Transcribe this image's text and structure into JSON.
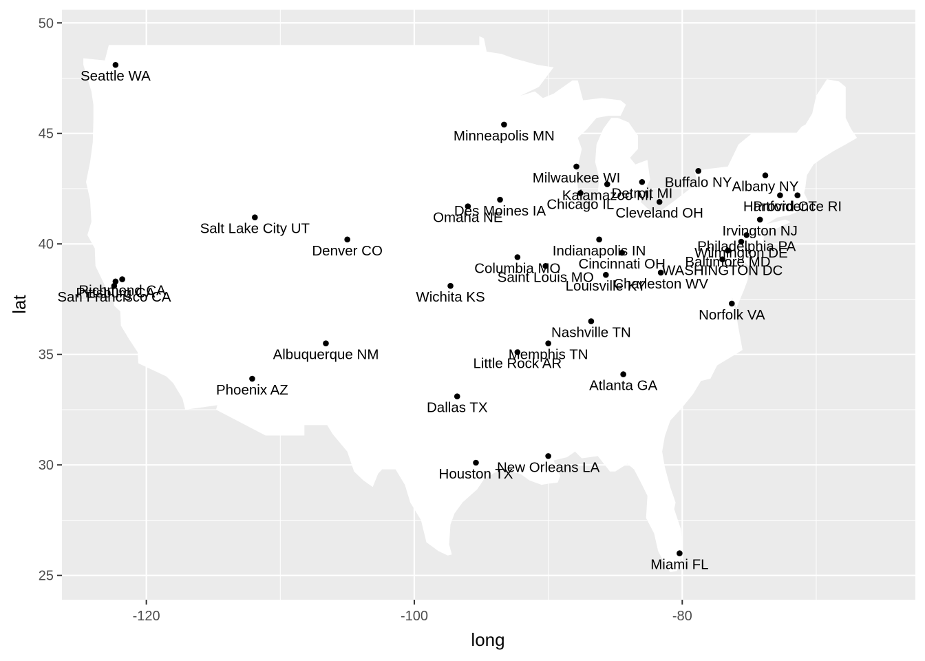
{
  "chart_data": {
    "type": "scatter",
    "title": "",
    "xlabel": "long",
    "ylabel": "lat",
    "xlim": [
      -126.3,
      -62.6
    ],
    "ylim": [
      23.9,
      50.6
    ],
    "x_ticks": [
      -120,
      -100,
      -80
    ],
    "x_tick_labels": [
      "-120",
      "-100",
      "-80"
    ],
    "y_ticks": [
      25,
      30,
      35,
      40,
      45,
      50
    ],
    "y_tick_labels": [
      "25",
      "30",
      "35",
      "40",
      "45",
      "50"
    ],
    "grid": true,
    "legend": "none",
    "colors": {
      "panel_background": "#ebebeb",
      "grid": "#ffffff",
      "land": "#ffffff",
      "points": "#000000",
      "tick_text": "#4d4d4d"
    },
    "basemap": "contiguous-united-states",
    "points": [
      {
        "label": "Seattle WA",
        "long": -122.3,
        "lat": 48.1
      },
      {
        "label": "Minneapolis MN",
        "long": -93.3,
        "lat": 45.4
      },
      {
        "label": "Milwaukee WI",
        "long": -87.9,
        "lat": 43.5
      },
      {
        "label": "Buffalo NY",
        "long": -78.8,
        "lat": 43.3
      },
      {
        "label": "Albany NY",
        "long": -73.8,
        "lat": 43.1
      },
      {
        "label": "Detroit MI",
        "long": -83.0,
        "lat": 42.8
      },
      {
        "label": "Kalamazoo MI",
        "long": -85.6,
        "lat": 42.7
      },
      {
        "label": "Chicago IL",
        "long": -87.6,
        "lat": 42.3
      },
      {
        "label": "Providence RI",
        "long": -71.4,
        "lat": 42.2
      },
      {
        "label": "Hartford CT",
        "long": -72.7,
        "lat": 42.2
      },
      {
        "label": "Des Moines IA",
        "long": -93.6,
        "lat": 42.0
      },
      {
        "label": "Cleveland OH",
        "long": -81.7,
        "lat": 41.9
      },
      {
        "label": "Omaha NE",
        "long": -96.0,
        "lat": 41.7
      },
      {
        "label": "Salt Lake City UT",
        "long": -111.9,
        "lat": 41.2
      },
      {
        "label": "Irvington NJ",
        "long": -74.2,
        "lat": 41.1
      },
      {
        "label": "Philadelphia PA",
        "long": -75.2,
        "lat": 40.4
      },
      {
        "label": "Denver CO",
        "long": -105.0,
        "lat": 40.2
      },
      {
        "label": "Indianapolis IN",
        "long": -86.2,
        "lat": 40.2
      },
      {
        "label": "Wilmington DE",
        "long": -75.6,
        "lat": 40.1
      },
      {
        "label": "Baltimore MD",
        "long": -76.6,
        "lat": 39.7
      },
      {
        "label": "Cincinnati OH",
        "long": -84.5,
        "lat": 39.6
      },
      {
        "label": "Columbia MO",
        "long": -92.3,
        "lat": 39.4
      },
      {
        "label": "WASHINGTON DC",
        "long": -77.0,
        "lat": 39.3
      },
      {
        "label": "Saint Louis MO",
        "long": -90.2,
        "lat": 39.0
      },
      {
        "label": "Charleston WV",
        "long": -81.6,
        "lat": 38.7
      },
      {
        "label": "Louisville KY",
        "long": -85.7,
        "lat": 38.6
      },
      {
        "label": "Richmond CA",
        "long": -121.8,
        "lat": 38.4
      },
      {
        "label": "Pittsburg CA",
        "long": -122.3,
        "lat": 38.3
      },
      {
        "label": "San Francisco CA",
        "long": -122.4,
        "lat": 38.1
      },
      {
        "label": "Wichita KS",
        "long": -97.3,
        "lat": 38.1
      },
      {
        "label": "Norfolk VA",
        "long": -76.3,
        "lat": 37.3
      },
      {
        "label": "Nashville TN",
        "long": -86.8,
        "lat": 36.5
      },
      {
        "label": "Memphis TN",
        "long": -90.0,
        "lat": 35.5
      },
      {
        "label": "Albuquerque NM",
        "long": -106.6,
        "lat": 35.5
      },
      {
        "label": "Little Rock AR",
        "long": -92.3,
        "lat": 35.1
      },
      {
        "label": "Atlanta GA",
        "long": -84.4,
        "lat": 34.1
      },
      {
        "label": "Phoenix AZ",
        "long": -112.1,
        "lat": 33.9
      },
      {
        "label": "Dallas TX",
        "long": -96.8,
        "lat": 33.1
      },
      {
        "label": "New Orleans LA",
        "long": -90.0,
        "lat": 30.4
      },
      {
        "label": "Houston TX",
        "long": -95.4,
        "lat": 30.1
      },
      {
        "label": "Miami FL",
        "long": -80.2,
        "lat": 26.0
      }
    ]
  }
}
